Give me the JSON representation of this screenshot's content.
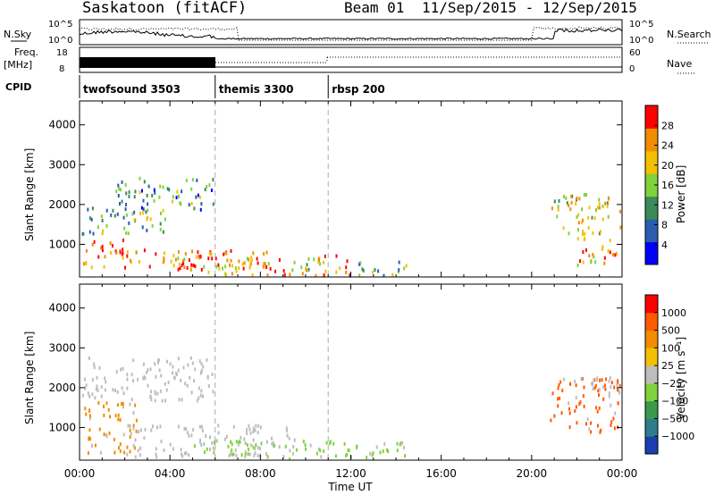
{
  "header": {
    "station": "Saskatoon (fitACF)",
    "beam": "Beam 01",
    "dates": "11/Sep/2015 - 12/Sep/2015"
  },
  "strip": {
    "nsky_label": "N.Sky",
    "nsky_ticks": [
      "10^5",
      "10^0"
    ],
    "nsearch_label": "N.Search",
    "nsearch_ticks": [
      "10^5",
      "10^0"
    ],
    "freq_label": "Freq.",
    "freq_unit": "[MHz]",
    "freq_ticks": [
      "18",
      "8"
    ],
    "nave_label": "Nave",
    "nave_ticks": [
      "60",
      "0"
    ],
    "cpid_label": "CPID"
  },
  "cpid_segments": [
    {
      "name": "twofsound 3503",
      "start_hour": 0,
      "end_hour": 6
    },
    {
      "name": "themis 3300",
      "start_hour": 6,
      "end_hour": 11
    },
    {
      "name": "rbsp 200",
      "start_hour": 11,
      "end_hour": 24
    }
  ],
  "chart_data": [
    {
      "type": "heatmap",
      "title": "Power",
      "xlabel": "Time UT",
      "ylabel": "Slant Range [km]",
      "x_ticks": [
        "00:00",
        "04:00",
        "08:00",
        "12:00",
        "16:00",
        "20:00",
        "00:00"
      ],
      "xlim_hours": [
        0,
        24
      ],
      "y_ticks": [
        1000,
        2000,
        3000,
        4000
      ],
      "ylim": [
        180,
        4600
      ],
      "colorbar": {
        "label": "Power [dB]",
        "tick_labels": [
          "4",
          "8",
          "12",
          "16",
          "20",
          "24",
          "28"
        ],
        "range": [
          0,
          32
        ],
        "colors": [
          "#0000ff",
          "#2a5db0",
          "#3c8a5a",
          "#7fd23a",
          "#f2c000",
          "#f28c00",
          "#ff0000"
        ]
      },
      "echo_regions": [
        {
          "t": [
            0.1,
            5.8
          ],
          "r": [
            400,
            900
          ],
          "level": 0.78
        },
        {
          "t": [
            0.4,
            2.0
          ],
          "r": [
            800,
            1250
          ],
          "level": 0.88
        },
        {
          "t": [
            0.1,
            4.0
          ],
          "r": [
            1300,
            2000
          ],
          "level": 0.45
        },
        {
          "t": [
            1.5,
            6.0
          ],
          "r": [
            1900,
            2700
          ],
          "level": 0.35
        },
        {
          "t": [
            4.0,
            8.5
          ],
          "r": [
            300,
            900
          ],
          "level": 0.82
        },
        {
          "t": [
            6.0,
            11.0
          ],
          "r": [
            250,
            700
          ],
          "level": 0.65
        },
        {
          "t": [
            10.5,
            12.0
          ],
          "r": [
            250,
            800
          ],
          "level": 0.9
        },
        {
          "t": [
            12.0,
            14.5
          ],
          "r": [
            250,
            600
          ],
          "level": 0.35
        },
        {
          "t": [
            20.8,
            23.9
          ],
          "r": [
            1300,
            2300
          ],
          "level": 0.6
        },
        {
          "t": [
            22.0,
            23.8
          ],
          "r": [
            500,
            1400
          ],
          "level": 0.7
        }
      ]
    },
    {
      "type": "heatmap",
      "title": "Velocity",
      "xlabel": "Time UT",
      "ylabel": "Slant Range [km]",
      "x_ticks": [
        "00:00",
        "04:00",
        "08:00",
        "12:00",
        "16:00",
        "20:00",
        "00:00"
      ],
      "xlim_hours": [
        0,
        24
      ],
      "y_ticks": [
        1000,
        2000,
        3000,
        4000
      ],
      "ylim": [
        180,
        4600
      ],
      "colorbar": {
        "label": "Velocity [m s⁻¹]",
        "tick_labels": [
          "1000",
          "500",
          "100",
          "25",
          "−25",
          "−100",
          "−500",
          "−1000"
        ],
        "colors": [
          "#1a3fb0",
          "#2e7d8c",
          "#3a9a4a",
          "#7fd23a",
          "#bdbdbd",
          "#f2c000",
          "#f28c00",
          "#ff5a00",
          "#ff0000"
        ]
      },
      "echo_regions": [
        {
          "t": [
            0.1,
            2.5
          ],
          "r": [
            400,
            1700
          ],
          "color": "#f28c00"
        },
        {
          "t": [
            0.1,
            6.0
          ],
          "r": [
            1700,
            2800
          ],
          "color": "#bdbdbd"
        },
        {
          "t": [
            2.0,
            9.5
          ],
          "r": [
            300,
            1100
          ],
          "color": "#bdbdbd"
        },
        {
          "t": [
            5.0,
            12.0
          ],
          "r": [
            250,
            700
          ],
          "color": "#7fd23a"
        },
        {
          "t": [
            12.0,
            14.5
          ],
          "r": [
            250,
            700
          ],
          "color": "#7fd23a"
        },
        {
          "t": [
            20.8,
            23.9
          ],
          "r": [
            900,
            2300
          ],
          "color": "#ff5a00"
        },
        {
          "t": [
            22.5,
            23.9
          ],
          "r": [
            1800,
            2300
          ],
          "color": "#bdbdbd"
        }
      ]
    }
  ]
}
